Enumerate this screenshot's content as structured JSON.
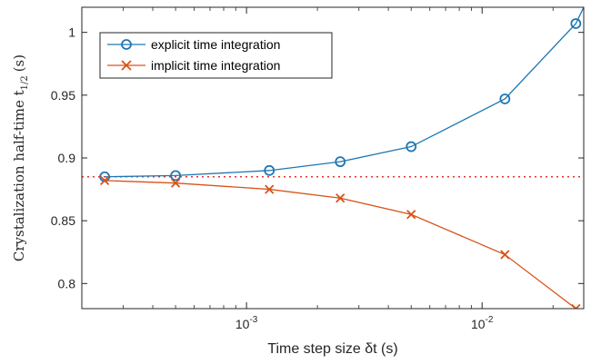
{
  "chart_data": {
    "type": "line",
    "title": "",
    "xlabel": "Time step size δt (s)",
    "ylabel": "Crystalization half-time t",
    "ylabel_sub": "1/2",
    "ylabel_unit": "(s)",
    "xscale": "log",
    "xlim": [
      0.0002,
      0.027
    ],
    "ylim": [
      0.78,
      1.02
    ],
    "x_ticks": [
      {
        "value": 0.001,
        "base": "10",
        "exp": "-3"
      },
      {
        "value": 0.01,
        "base": "10",
        "exp": "-2"
      }
    ],
    "y_ticks": [
      {
        "value": 0.8,
        "label": "0.8"
      },
      {
        "value": 0.85,
        "label": "0.85"
      },
      {
        "value": 0.9,
        "label": "0.9"
      },
      {
        "value": 0.95,
        "label": "0.95"
      },
      {
        "value": 1.0,
        "label": "1"
      }
    ],
    "x": [
      0.00025,
      0.0005,
      0.00125,
      0.0025,
      0.005,
      0.0125,
      0.025
    ],
    "series": [
      {
        "name": "explicit time integration",
        "marker": "circle",
        "color": "#1f77b4",
        "values": [
          0.885,
          0.886,
          0.89,
          0.897,
          0.909,
          0.947,
          1.007
        ],
        "curve_extends_to": {
          "x": 0.027,
          "y": 1.02
        }
      },
      {
        "name": "implicit time integration",
        "marker": "x",
        "color": "#d95319",
        "values": [
          0.882,
          0.88,
          0.875,
          0.868,
          0.855,
          0.823,
          0.78
        ]
      }
    ],
    "reference_line": {
      "y": 0.885,
      "style": "dotted",
      "color": "#e8312f"
    },
    "grid": false,
    "legend_position": "top-left"
  }
}
